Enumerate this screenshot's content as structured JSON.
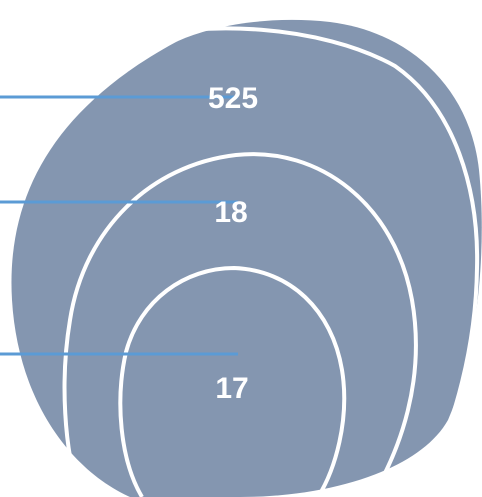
{
  "diagram": {
    "type": "nested-circles",
    "fill_color": "#8496b0",
    "ring_color": "#ffffff",
    "leader_line_color": "#5b9bd5",
    "levels": [
      {
        "value": "525"
      },
      {
        "value": "18"
      },
      {
        "value": "17"
      }
    ]
  }
}
